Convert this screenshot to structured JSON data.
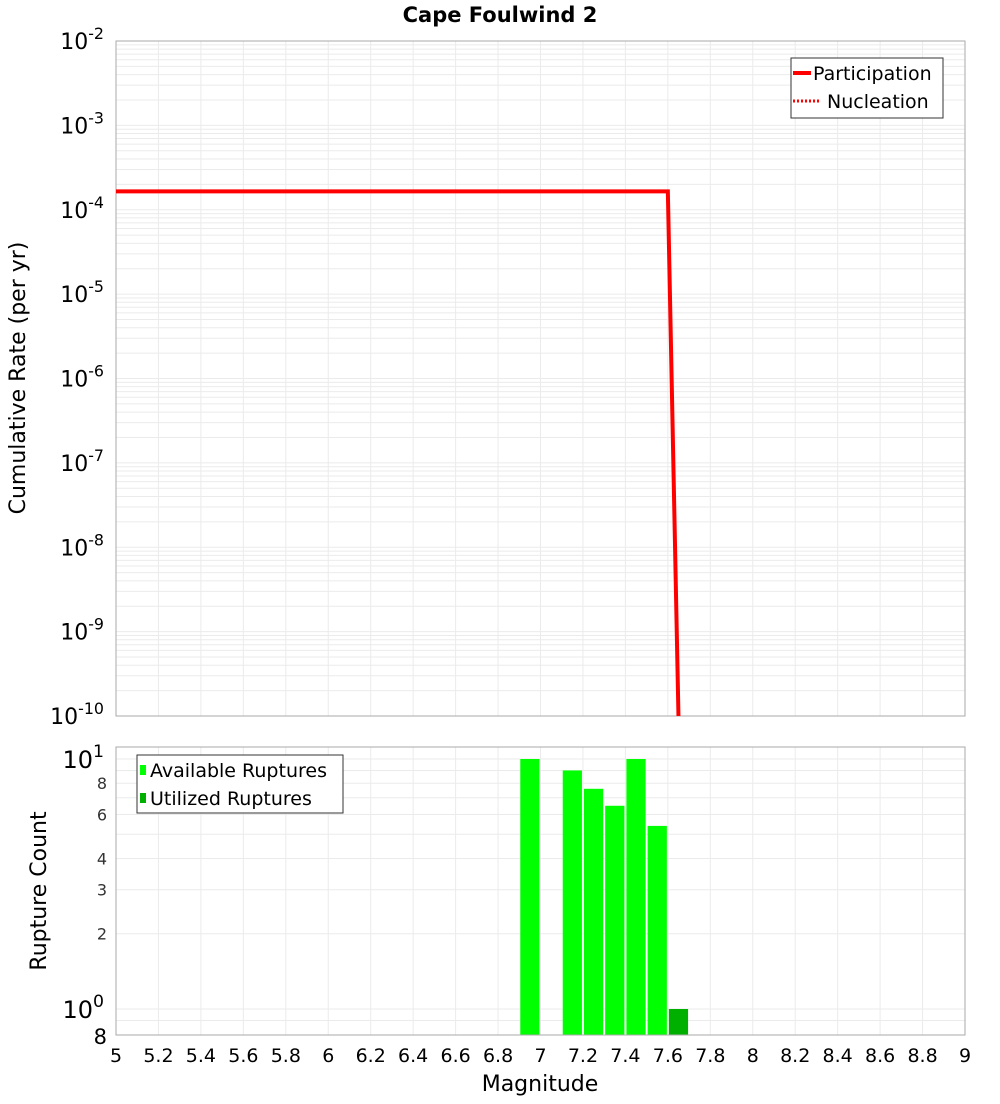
{
  "chart_data": [
    {
      "type": "line",
      "title": "Cape Foulwind 2",
      "xlabel": "Magnitude",
      "ylabel": "Cumulative Rate (per yr)",
      "xlim": [
        5,
        9
      ],
      "ylim": [
        1e-10,
        0.01
      ],
      "yscale": "log",
      "grid": true,
      "legend_position": "top-right",
      "y_ticks": [
        {
          "exp": "-2",
          "value": 0.01
        },
        {
          "exp": "-3",
          "value": 0.001
        },
        {
          "exp": "-4",
          "value": 0.0001
        },
        {
          "exp": "-5",
          "value": 1e-05
        },
        {
          "exp": "-6",
          "value": 1e-06
        },
        {
          "exp": "-7",
          "value": 1e-07
        },
        {
          "exp": "-8",
          "value": 1e-08
        },
        {
          "exp": "-9",
          "value": 1e-09
        },
        {
          "exp": "-10",
          "value": 1e-10
        }
      ],
      "series": [
        {
          "name": "Participation",
          "style": "solid",
          "color": "#ff0000",
          "x": [
            5.0,
            7.6,
            7.65
          ],
          "y": [
            0.000165,
            0.000165,
            1e-10
          ]
        },
        {
          "name": "Nucleation",
          "style": "dotted",
          "color": "#ff0000",
          "x": [],
          "y": []
        }
      ]
    },
    {
      "type": "bar",
      "xlabel": "Magnitude",
      "ylabel": "Rupture Count",
      "xlim": [
        5,
        9
      ],
      "ylim": [
        0.79,
        11
      ],
      "yscale": "log",
      "grid": true,
      "legend_position": "top-left",
      "x_ticks": [
        "5",
        "5.2",
        "5.4",
        "5.6",
        "5.8",
        "6",
        "6.2",
        "6.4",
        "6.6",
        "6.8",
        "7",
        "7.2",
        "7.4",
        "7.6",
        "7.8",
        "8",
        "8.2",
        "8.4",
        "8.6",
        "8.8",
        "9"
      ],
      "y_ticks": [
        {
          "label": "10",
          "exp": "1",
          "value": 10
        },
        {
          "label": "8",
          "value": 8
        },
        {
          "label": "6",
          "value": 6
        },
        {
          "label": "4",
          "value": 4
        },
        {
          "label": "3",
          "value": 3
        },
        {
          "label": "2",
          "value": 2
        },
        {
          "label": "10",
          "exp": "0",
          "value": 1
        },
        {
          "label": "8",
          "value": 0.8
        }
      ],
      "bin_width": 0.1,
      "series": [
        {
          "name": "Available Ruptures",
          "color": "#00ff00",
          "x": [
            6.95,
            7.15,
            7.25,
            7.35,
            7.45,
            7.55
          ],
          "values": [
            10,
            9,
            7.6,
            6.5,
            10,
            5.4
          ]
        },
        {
          "name": "Utilized Ruptures",
          "color": "#00b000",
          "x": [
            7.65
          ],
          "values": [
            1
          ]
        }
      ]
    }
  ]
}
